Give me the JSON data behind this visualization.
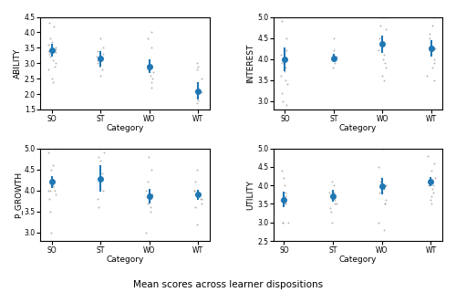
{
  "categories": [
    "SO",
    "ST",
    "WO",
    "WT"
  ],
  "subplots": [
    {
      "ylabel": "ABILITY",
      "ylim": [
        1.5,
        4.5
      ],
      "yticks": [
        1.5,
        2.0,
        2.5,
        3.0,
        3.5,
        4.0,
        4.5
      ],
      "means": [
        3.42,
        3.15,
        2.9,
        2.1
      ],
      "ci_low": [
        3.22,
        2.88,
        2.68,
        1.82
      ],
      "ci_high": [
        3.62,
        3.4,
        3.12,
        2.38
      ],
      "scatter_points": [
        [
          4.3,
          4.2,
          3.8,
          3.7,
          3.6,
          3.5,
          3.45,
          3.4,
          3.35,
          3.3,
          3.2,
          3.1,
          3.0,
          2.9,
          2.8,
          2.5,
          2.4
        ],
        [
          3.8,
          3.5,
          3.4,
          3.3,
          3.2,
          3.1,
          3.0,
          2.9,
          2.8,
          2.6
        ],
        [
          4.0,
          3.8,
          3.5,
          2.9,
          2.85,
          2.8,
          2.7,
          2.6,
          2.5,
          2.4,
          2.2
        ],
        [
          3.0,
          2.9,
          2.8,
          2.5,
          2.1,
          2.05,
          2.0,
          1.9,
          1.8,
          1.7,
          1.5
        ]
      ]
    },
    {
      "ylabel": "INTEREST",
      "ylim": [
        2.8,
        5.0
      ],
      "yticks": [
        3.0,
        3.5,
        4.0,
        4.5,
        5.0
      ],
      "means": [
        4.0,
        4.02,
        4.35,
        4.25
      ],
      "ci_low": [
        3.72,
        3.92,
        4.15,
        4.05
      ],
      "ci_high": [
        4.28,
        4.12,
        4.55,
        4.45
      ],
      "scatter_points": [
        [
          5.0,
          4.9,
          4.5,
          4.2,
          4.1,
          4.0,
          3.95,
          3.9,
          3.8,
          3.7,
          3.6,
          3.5,
          3.4,
          3.2,
          3.0,
          2.9
        ],
        [
          4.5,
          4.2,
          4.1,
          4.05,
          4.0,
          3.9,
          3.8
        ],
        [
          5.0,
          5.0,
          4.8,
          4.7,
          4.5,
          4.35,
          4.2,
          4.1,
          4.0,
          3.9,
          3.8,
          3.6,
          3.5
        ],
        [
          5.0,
          4.8,
          4.6,
          4.5,
          4.3,
          4.25,
          4.2,
          4.0,
          3.9,
          3.8,
          3.6,
          3.5
        ]
      ]
    },
    {
      "ylabel": "P_GROWTH",
      "ylim": [
        2.8,
        5.0
      ],
      "yticks": [
        3.0,
        3.5,
        4.0,
        4.5,
        5.0
      ],
      "means": [
        4.2,
        4.28,
        3.87,
        3.9
      ],
      "ci_low": [
        4.05,
        3.98,
        3.7,
        3.78
      ],
      "ci_high": [
        4.35,
        4.6,
        4.04,
        4.02
      ],
      "scatter_points": [
        [
          5.0,
          4.9,
          4.6,
          4.5,
          4.2,
          4.1,
          4.1,
          4.0,
          4.0,
          4.0,
          3.9,
          3.8,
          3.5,
          3.0
        ],
        [
          5.0,
          4.9,
          4.8,
          4.7,
          4.4,
          4.3,
          4.2,
          4.0,
          3.8,
          3.6
        ],
        [
          4.8,
          4.5,
          4.2,
          4.0,
          3.9,
          3.85,
          3.8,
          3.7,
          3.6,
          3.5,
          3.0,
          2.8
        ],
        [
          4.5,
          4.2,
          4.0,
          4.0,
          3.95,
          3.9,
          3.9,
          3.8,
          3.8,
          3.7,
          3.6,
          3.2
        ]
      ]
    },
    {
      "ylabel": "UTILITY",
      "ylim": [
        2.5,
        5.0
      ],
      "yticks": [
        2.5,
        3.0,
        3.5,
        4.0,
        4.5,
        5.0
      ],
      "means": [
        3.62,
        3.72,
        3.97,
        4.1
      ],
      "ci_low": [
        3.42,
        3.55,
        3.75,
        3.98
      ],
      "ci_high": [
        3.82,
        3.89,
        4.19,
        4.22
      ],
      "scatter_points": [
        [
          4.4,
          4.2,
          4.0,
          3.8,
          3.8,
          3.7,
          3.6,
          3.6,
          3.5,
          3.5,
          3.0,
          3.0,
          3.0,
          2.4
        ],
        [
          4.1,
          4.0,
          3.8,
          3.8,
          3.7,
          3.6,
          3.5,
          3.5,
          3.4,
          3.3,
          3.0
        ],
        [
          5.0,
          4.5,
          4.2,
          4.1,
          4.0,
          4.0,
          3.9,
          3.8,
          3.8,
          3.6,
          3.5,
          3.5,
          3.0,
          2.8
        ],
        [
          4.8,
          4.6,
          4.4,
          4.2,
          4.1,
          4.1,
          4.0,
          4.0,
          3.9,
          3.8,
          3.7,
          3.6,
          3.5
        ]
      ]
    }
  ],
  "dot_color": "#1f77b4",
  "scatter_color": "#aaaaaa",
  "mean_marker_size": 4,
  "scatter_marker_size": 2,
  "xlabel": "Category",
  "fig_title": "Mean scores across learner dispositions",
  "fig_title_fontsize": 7.5
}
